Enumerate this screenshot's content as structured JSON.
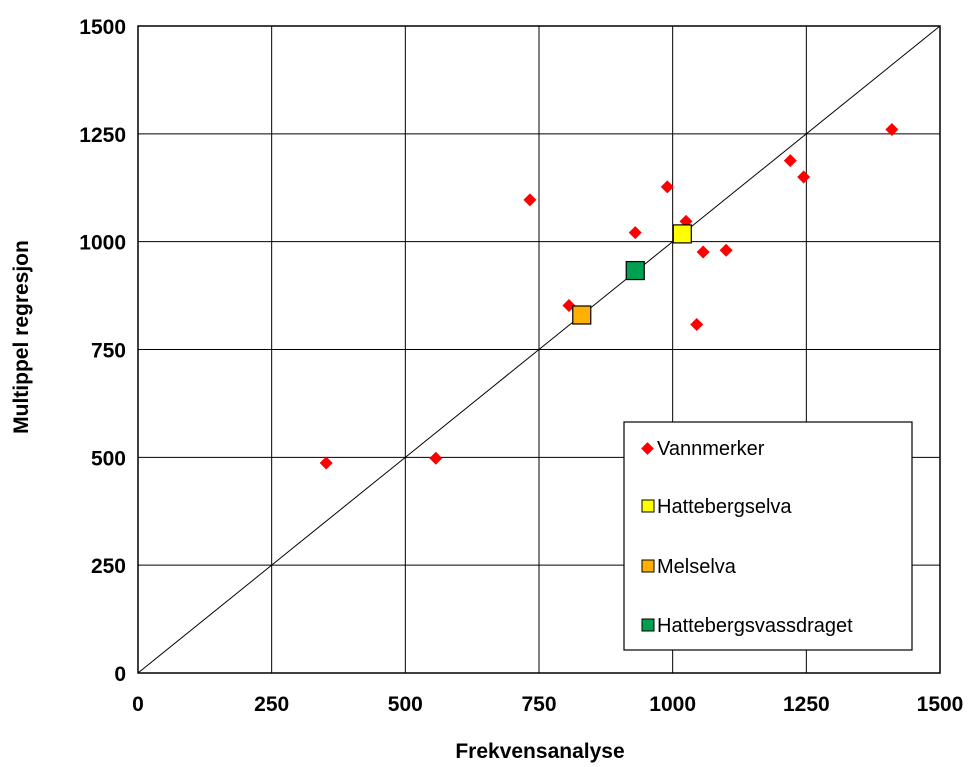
{
  "chart_data": {
    "type": "scatter",
    "xlabel": "Frekvensanalyse",
    "ylabel": "Multippel regresjon",
    "xlim": [
      0,
      1500
    ],
    "ylim": [
      0,
      1500
    ],
    "xticks": [
      0,
      250,
      500,
      750,
      1000,
      1250,
      1500
    ],
    "yticks": [
      0,
      250,
      500,
      750,
      1000,
      1250,
      1500
    ],
    "grid": true,
    "reference_line": {
      "x": [
        0,
        1500
      ],
      "y": [
        0,
        1500
      ]
    },
    "legend_position": "bottom-right",
    "series": [
      {
        "name": "Vannmerker",
        "marker": "diamond",
        "color": "#ff0000",
        "points": [
          {
            "x": 352,
            "y": 487
          },
          {
            "x": 557,
            "y": 498
          },
          {
            "x": 733,
            "y": 1097
          },
          {
            "x": 806,
            "y": 852
          },
          {
            "x": 930,
            "y": 1021
          },
          {
            "x": 990,
            "y": 1127
          },
          {
            "x": 1025,
            "y": 1047
          },
          {
            "x": 1045,
            "y": 808
          },
          {
            "x": 1057,
            "y": 976
          },
          {
            "x": 1100,
            "y": 980
          },
          {
            "x": 1220,
            "y": 1188
          },
          {
            "x": 1245,
            "y": 1150
          },
          {
            "x": 1410,
            "y": 1260
          }
        ]
      },
      {
        "name": "Hattebergselva",
        "marker": "square",
        "color": "#ffff00",
        "points": [
          {
            "x": 1018,
            "y": 1018
          }
        ]
      },
      {
        "name": "Melselva",
        "marker": "square",
        "color": "#ffb000",
        "points": [
          {
            "x": 830,
            "y": 830
          }
        ]
      },
      {
        "name": "Hattebergsvassdraget",
        "marker": "square",
        "color": "#00a050",
        "points": [
          {
            "x": 930,
            "y": 933
          }
        ]
      }
    ]
  }
}
